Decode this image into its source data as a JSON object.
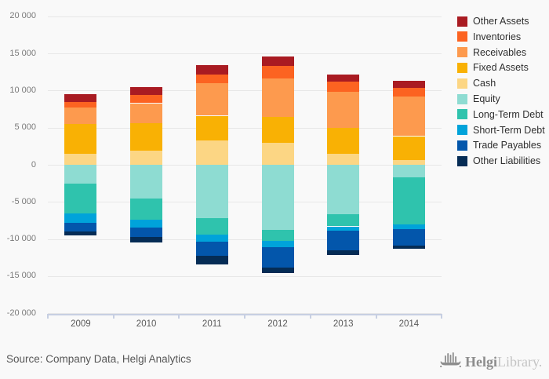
{
  "chart_data": {
    "type": "bar",
    "stacked": true,
    "title": "",
    "xlabel": "",
    "ylabel": "",
    "categories": [
      "2009",
      "2010",
      "2011",
      "2012",
      "2013",
      "2014"
    ],
    "series": [
      {
        "name": "Other Assets",
        "color": "#a91b22",
        "values": [
          1000,
          1100,
          1200,
          1300,
          950,
          900
        ]
      },
      {
        "name": "Inventories",
        "color": "#fc6321",
        "values": [
          800,
          1100,
          1200,
          1650,
          1450,
          1250
        ]
      },
      {
        "name": "Receivables",
        "color": "#fd9a4e",
        "values": [
          2200,
          2650,
          4400,
          5200,
          4850,
          5300
        ]
      },
      {
        "name": "Fixed Assets",
        "color": "#f9b104",
        "values": [
          4000,
          3700,
          3350,
          3500,
          3450,
          3250
        ]
      },
      {
        "name": "Cash",
        "color": "#fcd684",
        "values": [
          1500,
          1950,
          3250,
          2950,
          1500,
          600
        ]
      },
      {
        "name": "Equity",
        "color": "#8edcd2",
        "values": [
          -2550,
          -4500,
          -7200,
          -8800,
          -6700,
          -1700
        ]
      },
      {
        "name": "Long-Term Debt",
        "color": "#2fc3ad",
        "values": [
          -4000,
          -2900,
          -2200,
          -1500,
          -1600,
          -6350
        ]
      },
      {
        "name": "Short-Term Debt",
        "color": "#00a3da",
        "values": [
          -1250,
          -1050,
          -950,
          -800,
          -600,
          -600
        ]
      },
      {
        "name": "Trade Payables",
        "color": "#0356ab",
        "values": [
          -1150,
          -1250,
          -1900,
          -2750,
          -2650,
          -2250
        ]
      },
      {
        "name": "Other Liabilities",
        "color": "#052c55",
        "values": [
          -550,
          -800,
          -1150,
          -750,
          -650,
          -400
        ]
      }
    ],
    "ylim": [
      -20000,
      20000
    ],
    "ytick_step": 5000,
    "ytick_labels": [
      "20 000",
      "15 000",
      "10 000",
      "5 000",
      "0",
      "-5 000",
      "-10 000",
      "-15 000",
      "-20 000"
    ],
    "grid": true,
    "legend_position": "right",
    "legend_order": [
      "Other Assets",
      "Inventories",
      "Receivables",
      "Fixed Assets",
      "Cash",
      "Equity",
      "Long-Term Debt",
      "Short-Term Debt",
      "Trade Payables",
      "Other Liabilities"
    ]
  },
  "footer": {
    "source": "Source: Company Data, Helgi Analytics"
  },
  "logo": {
    "brand_bold": "Helgi",
    "brand_light": "Library."
  }
}
